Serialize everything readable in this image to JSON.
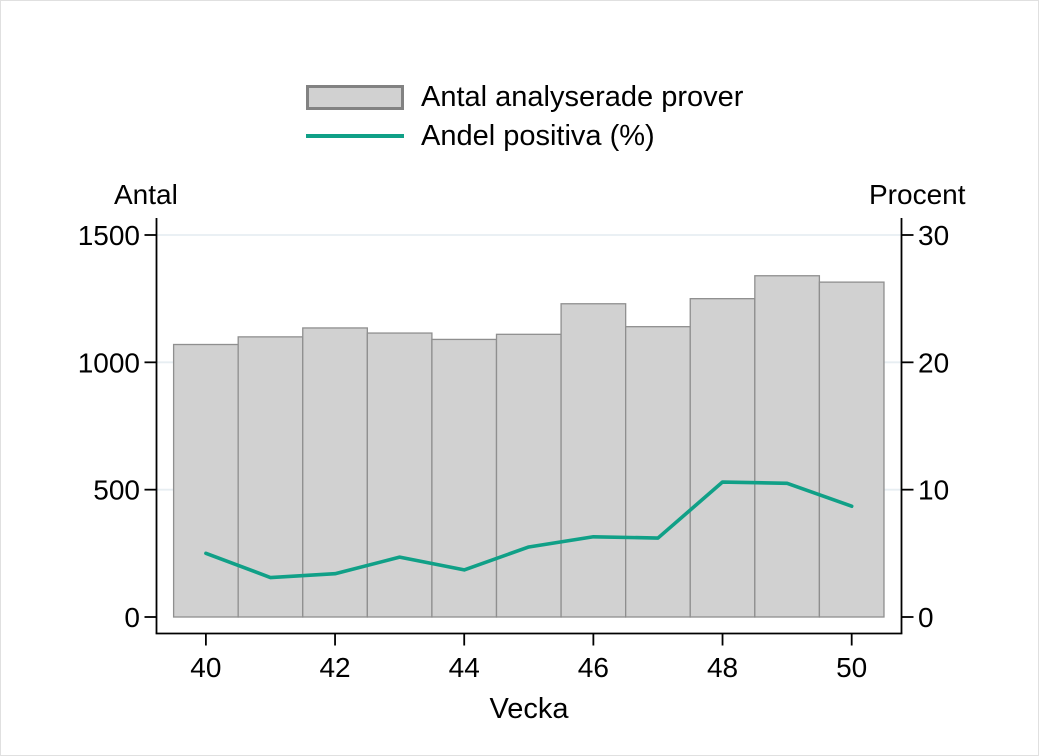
{
  "legend": {
    "items": [
      {
        "label": "Antal analyserade prover",
        "swatch": "gray-bar"
      },
      {
        "label": "Andel positiva (%)",
        "swatch": "teal-line"
      }
    ]
  },
  "chart_data": {
    "type": "bar",
    "categories": [
      40,
      41,
      42,
      43,
      44,
      45,
      46,
      47,
      48,
      49,
      50
    ],
    "series": [
      {
        "name": "Antal analyserade prover",
        "type": "bar",
        "axis": "left",
        "values": [
          1070,
          1100,
          1135,
          1115,
          1090,
          1110,
          1230,
          1140,
          1250,
          1340,
          1315
        ]
      },
      {
        "name": "Andel positiva (%)",
        "type": "line",
        "axis": "right",
        "values": [
          5.0,
          3.1,
          3.4,
          4.7,
          3.7,
          5.5,
          6.3,
          6.2,
          10.6,
          10.5,
          8.7
        ]
      }
    ],
    "left_axis": {
      "title": "Antal",
      "ticks": [
        0,
        500,
        1000,
        1500
      ],
      "tick_labels": [
        "0",
        "500",
        "1000",
        "1500"
      ],
      "range": [
        0,
        1500
      ]
    },
    "right_axis": {
      "title": "Procent",
      "ticks": [
        0,
        10,
        20,
        30
      ],
      "tick_labels": [
        "0",
        "10",
        "20",
        "30"
      ],
      "range": [
        0,
        30
      ]
    },
    "x_axis": {
      "title": "Vecka",
      "ticks": [
        40,
        42,
        44,
        46,
        48,
        50
      ],
      "tick_labels": [
        "40",
        "42",
        "44",
        "46",
        "48",
        "50"
      ]
    },
    "grid": "horizontal",
    "legend_position": "top-center",
    "colors": {
      "bar_fill": "#d1d1d1",
      "bar_border": "#8f8f8f",
      "line": "#10a087",
      "grid": "#e7eef2",
      "axis": "#000000",
      "text": "#000000"
    }
  }
}
